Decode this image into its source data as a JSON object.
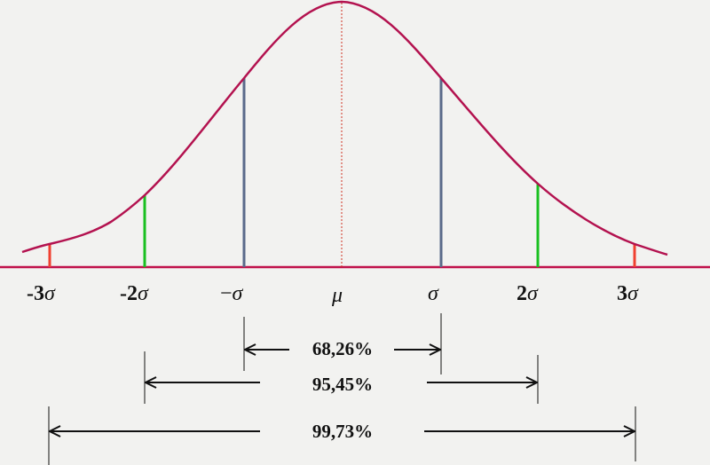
{
  "colors": {
    "curve": "#b3124f",
    "baseline": "#c0104a",
    "sigma1": "#5a6a8a",
    "sigma2": "#19c020",
    "sigma3": "#f04030",
    "mean": "#d03020",
    "background": "#f2f2f0"
  },
  "axis_labels": {
    "m3": {
      "num": "-3",
      "sym": "σ"
    },
    "m2": {
      "num": "-2",
      "sym": "σ"
    },
    "m1": {
      "num": "−",
      "sym": "σ"
    },
    "mu": "μ",
    "p1": {
      "num": "",
      "sym": "σ"
    },
    "p2": {
      "num": "2",
      "sym": "σ"
    },
    "p3": {
      "num": "3",
      "sym": "σ"
    }
  },
  "intervals": [
    {
      "label": "68,26%",
      "percent": 68.26
    },
    {
      "label": "95,45%",
      "percent": 95.45
    },
    {
      "label": "99,73%",
      "percent": 99.73
    }
  ]
}
